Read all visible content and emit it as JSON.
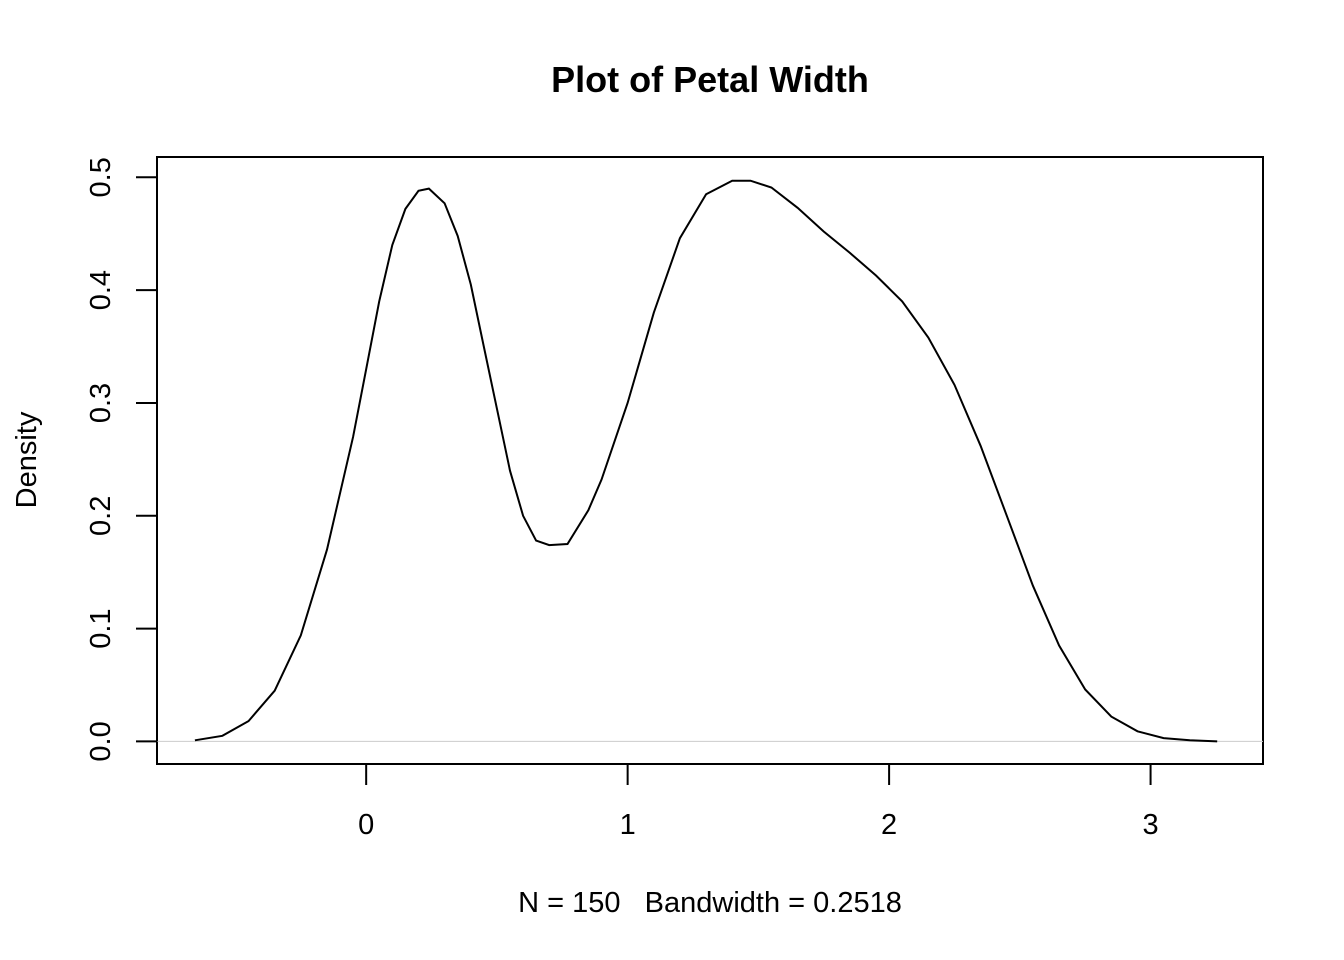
{
  "chart_data": {
    "type": "line",
    "title": "Plot of Petal Width",
    "xlabel": "N = 150   Bandwidth = 0.2518",
    "ylabel": "Density",
    "xlim": [
      -0.8,
      3.43
    ],
    "ylim": [
      -0.02,
      0.518
    ],
    "x_ticks": [
      0,
      1,
      2,
      3
    ],
    "x_tick_labels": [
      "0",
      "1",
      "2",
      "3"
    ],
    "y_ticks": [
      0.0,
      0.1,
      0.2,
      0.3,
      0.4,
      0.5
    ],
    "y_tick_labels": [
      "0.0",
      "0.1",
      "0.2",
      "0.3",
      "0.4",
      "0.5"
    ],
    "zero_line": true,
    "grid": false,
    "colors": {
      "line": "#000000",
      "zero_line": "#cccccc",
      "frame": "#000000"
    },
    "series": [
      {
        "x": [
          -0.655,
          -0.55,
          -0.45,
          -0.35,
          -0.25,
          -0.15,
          -0.05,
          0.0,
          0.05,
          0.1,
          0.15,
          0.2,
          0.24,
          0.3,
          0.35,
          0.4,
          0.45,
          0.5,
          0.55,
          0.6,
          0.65,
          0.7,
          0.77,
          0.85,
          0.9,
          1.0,
          1.1,
          1.2,
          1.3,
          1.4,
          1.47,
          1.55,
          1.65,
          1.75,
          1.85,
          1.95,
          2.05,
          2.15,
          2.25,
          2.35,
          2.45,
          2.55,
          2.65,
          2.75,
          2.85,
          2.95,
          3.05,
          3.15,
          3.255
        ],
        "y": [
          0.001,
          0.005,
          0.018,
          0.045,
          0.094,
          0.17,
          0.27,
          0.33,
          0.39,
          0.44,
          0.472,
          0.488,
          0.49,
          0.477,
          0.448,
          0.405,
          0.35,
          0.295,
          0.24,
          0.2,
          0.178,
          0.174,
          0.175,
          0.205,
          0.232,
          0.3,
          0.38,
          0.446,
          0.485,
          0.497,
          0.497,
          0.491,
          0.473,
          0.452,
          0.433,
          0.413,
          0.39,
          0.358,
          0.316,
          0.262,
          0.2,
          0.138,
          0.085,
          0.046,
          0.022,
          0.009,
          0.003,
          0.001,
          0.0
        ]
      }
    ]
  }
}
